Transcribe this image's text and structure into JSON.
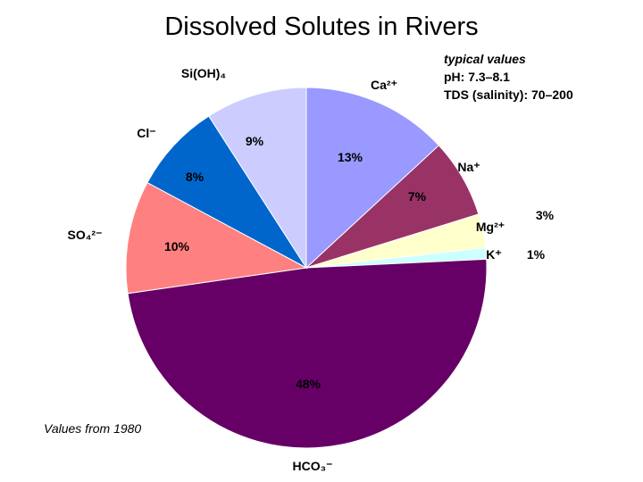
{
  "header": {
    "title": "Dissolved Solutes in Rivers"
  },
  "notes": [
    "typical values",
    "pH: 7.3–8.1",
    "TDS (salinity): 70–200"
  ],
  "footnote": "Values from 1980",
  "chart_data": {
    "type": "pie",
    "title": "Dissolved Solutes in Rivers",
    "slices": [
      {
        "name": "Ca²⁺",
        "value": 13,
        "label": "13%",
        "color": "#9999ff"
      },
      {
        "name": "Na⁺",
        "value": 7,
        "label": "7%",
        "color": "#993366"
      },
      {
        "name": "Mg²⁺",
        "value": 3,
        "label": "3%",
        "color": "#ffffcc"
      },
      {
        "name": "K⁺",
        "value": 1,
        "label": "1%",
        "color": "#ccffff"
      },
      {
        "name": "HCO₃⁻",
        "value": 48,
        "label": "48%",
        "color": "#660066"
      },
      {
        "name": "SO₄²⁻",
        "value": 10,
        "label": "10%",
        "color": "#ff8080"
      },
      {
        "name": "Cl⁻",
        "value": 8,
        "label": "8%",
        "color": "#0066cc"
      },
      {
        "name": "Si(OH)₄",
        "value": 9,
        "label": "9%",
        "color": "#ccccff"
      }
    ],
    "start": "12 o'clock",
    "direction": "clockwise"
  }
}
